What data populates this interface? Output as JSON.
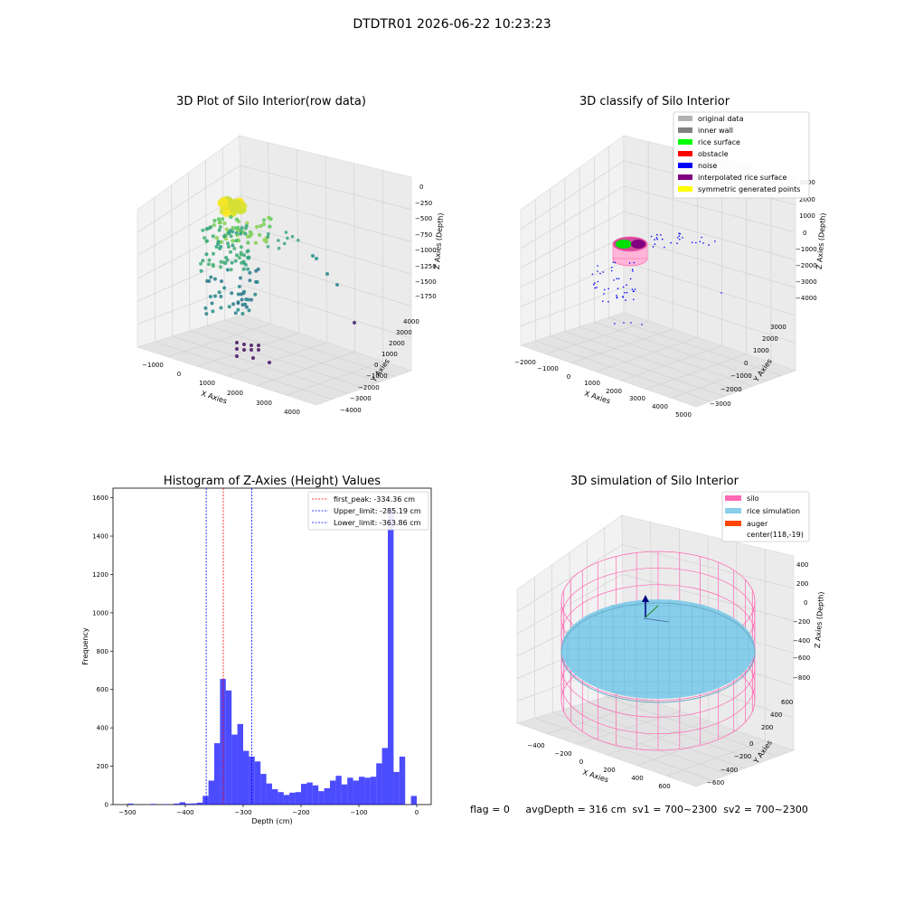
{
  "suptitle": "DTDTR01 2026-06-22 10:23:23",
  "panel1": {
    "title": "3D Plot of Silo Interior(row data)",
    "xlabel": "X Axies",
    "ylabel": "Y Axies",
    "zlabel": "Z Axies (Depth)",
    "xticks": [
      "−1000",
      "0",
      "1000",
      "2000",
      "3000",
      "4000"
    ],
    "yticks": [
      "−4000",
      "−3000",
      "−2000",
      "−1000",
      "0",
      "1000",
      "2000",
      "3000",
      "4000"
    ],
    "zticks": [
      "0",
      "−250",
      "−500",
      "−750",
      "−1000",
      "−1250",
      "−1500",
      "−1750"
    ]
  },
  "panel2": {
    "title": "3D classify of Silo Interior",
    "xlabel": "X Axies",
    "ylabel": "Y Axies",
    "zlabel": "Z Axies (Depth)",
    "xticks": [
      "−2000",
      "−1000",
      "0",
      "1000",
      "2000",
      "3000",
      "4000",
      "5000"
    ],
    "yticks": [
      "−3000",
      "−2000",
      "−1000",
      "0",
      "1000",
      "2000",
      "3000"
    ],
    "zticks": [
      "3000",
      "2000",
      "1000",
      "0",
      "−1000",
      "−2000",
      "−3000",
      "−4000"
    ],
    "legend": [
      {
        "label": "original data",
        "color": "#b3b3b3"
      },
      {
        "label": "inner wall",
        "color": "#808080"
      },
      {
        "label": "rice surface",
        "color": "#00ff00"
      },
      {
        "label": "obstacle",
        "color": "#ff0000"
      },
      {
        "label": "noise",
        "color": "#0000ff"
      },
      {
        "label": "interpolated rice surface",
        "color": "#800080"
      },
      {
        "label": "symmetric generated points",
        "color": "#ffff00"
      }
    ]
  },
  "panel3": {
    "title": "Histogram of Z-Axies (Height) Values",
    "xlabel": "Depth (cm)",
    "ylabel": "Frequency",
    "legend": [
      {
        "label": "first_peak: -334.36 cm",
        "color": "#ff0000"
      },
      {
        "label": "Upper_limit: -285.19 cm",
        "color": "#0000ff"
      },
      {
        "label": "Lower_limit: -363.86 cm",
        "color": "#0000ff"
      }
    ]
  },
  "panel4": {
    "title": "3D simulation of Silo Interior",
    "xlabel": "X Axies",
    "ylabel": "Y Axies",
    "zlabel": "Z Axies (Depth)",
    "xticks": [
      "−400",
      "−200",
      "0",
      "200",
      "400",
      "600"
    ],
    "yticks": [
      "−600",
      "−400",
      "−200",
      "0",
      "200",
      "400",
      "600"
    ],
    "zticks": [
      "400",
      "200",
      "0",
      "−200",
      "−400",
      "−600",
      "−800"
    ],
    "legend": [
      {
        "label": "silo",
        "color": "#ff69b4"
      },
      {
        "label": "rice simulation",
        "color": "#87ceeb"
      },
      {
        "label": "auger",
        "color": "#ff4500"
      },
      {
        "label": "center(118,-19)",
        "color": ""
      }
    ]
  },
  "footer": "flag = 0     avgDepth = 316 cm  sv1 = 700~2300  sv2 = 700~2300",
  "chart_data": [
    {
      "type": "scatter",
      "title": "3D Plot of Silo Interior(row data)",
      "xlabel": "X Axies",
      "ylabel": "Y Axies",
      "zlabel": "Z Axies (Depth)",
      "xlim": [
        -1500,
        4500
      ],
      "ylim": [
        -4000,
        4000
      ],
      "zlim": [
        -1900,
        100
      ],
      "colormap": "viridis"
    },
    {
      "type": "scatter",
      "title": "3D classify of Silo Interior",
      "xlabel": "X Axies",
      "ylabel": "Y Axies",
      "zlabel": "Z Axies (Depth)",
      "xlim": [
        -2500,
        5500
      ],
      "ylim": [
        -3500,
        3500
      ],
      "zlim": [
        -4500,
        3500
      ]
    },
    {
      "type": "bar",
      "title": "Histogram of Z-Axies (Height) Values",
      "xlabel": "Depth (cm)",
      "ylabel": "Frequency",
      "xlim": [
        -525,
        25
      ],
      "ylim": [
        0,
        1650
      ],
      "xticks": [
        -500,
        -400,
        -300,
        -200,
        -100,
        0
      ],
      "yticks": [
        0,
        200,
        400,
        600,
        800,
        1000,
        1200,
        1400,
        1600
      ],
      "bin_width": 10,
      "bins": [
        {
          "x": -495,
          "value": 5
        },
        {
          "x": -485,
          "value": 0
        },
        {
          "x": -475,
          "value": 0
        },
        {
          "x": -465,
          "value": 0
        },
        {
          "x": -455,
          "value": 3
        },
        {
          "x": -445,
          "value": 0
        },
        {
          "x": -435,
          "value": 2
        },
        {
          "x": -425,
          "value": 0
        },
        {
          "x": -415,
          "value": 5
        },
        {
          "x": -405,
          "value": 12
        },
        {
          "x": -395,
          "value": 5
        },
        {
          "x": -385,
          "value": 6
        },
        {
          "x": -375,
          "value": 10
        },
        {
          "x": -365,
          "value": 45
        },
        {
          "x": -355,
          "value": 125
        },
        {
          "x": -345,
          "value": 320
        },
        {
          "x": -335,
          "value": 655
        },
        {
          "x": -325,
          "value": 595
        },
        {
          "x": -315,
          "value": 365
        },
        {
          "x": -305,
          "value": 420
        },
        {
          "x": -295,
          "value": 280
        },
        {
          "x": -285,
          "value": 250
        },
        {
          "x": -275,
          "value": 225
        },
        {
          "x": -265,
          "value": 160
        },
        {
          "x": -255,
          "value": 110
        },
        {
          "x": -245,
          "value": 80
        },
        {
          "x": -235,
          "value": 65
        },
        {
          "x": -225,
          "value": 50
        },
        {
          "x": -215,
          "value": 62
        },
        {
          "x": -205,
          "value": 65
        },
        {
          "x": -195,
          "value": 108
        },
        {
          "x": -185,
          "value": 115
        },
        {
          "x": -175,
          "value": 100
        },
        {
          "x": -165,
          "value": 70
        },
        {
          "x": -155,
          "value": 85
        },
        {
          "x": -145,
          "value": 125
        },
        {
          "x": -135,
          "value": 150
        },
        {
          "x": -125,
          "value": 105
        },
        {
          "x": -115,
          "value": 140
        },
        {
          "x": -105,
          "value": 125
        },
        {
          "x": -95,
          "value": 145
        },
        {
          "x": -85,
          "value": 140
        },
        {
          "x": -75,
          "value": 145
        },
        {
          "x": -65,
          "value": 215
        },
        {
          "x": -55,
          "value": 295
        },
        {
          "x": -45,
          "value": 1545
        },
        {
          "x": -35,
          "value": 170
        },
        {
          "x": -25,
          "value": 250
        },
        {
          "x": -15,
          "value": 0
        },
        {
          "x": -5,
          "value": 45
        }
      ],
      "bar_color": "#0000ff",
      "vlines": [
        {
          "label": "first_peak: -334.36 cm",
          "x": -334.36,
          "color": "#ff0000"
        },
        {
          "label": "Upper_limit: -285.19 cm",
          "x": -285.19,
          "color": "#0000ff"
        },
        {
          "label": "Lower_limit: -363.86 cm",
          "x": -363.86,
          "color": "#0000ff"
        }
      ],
      "legend_position": "top-right"
    },
    {
      "type": "scatter",
      "title": "3D simulation of Silo Interior",
      "xlabel": "X Axies",
      "ylabel": "Y Axies",
      "zlabel": "Z Axies (Depth)",
      "xlim": [
        -500,
        700
      ],
      "ylim": [
        -700,
        700
      ],
      "zlim": [
        -900,
        500
      ],
      "center": [
        118,
        -19
      ]
    }
  ]
}
